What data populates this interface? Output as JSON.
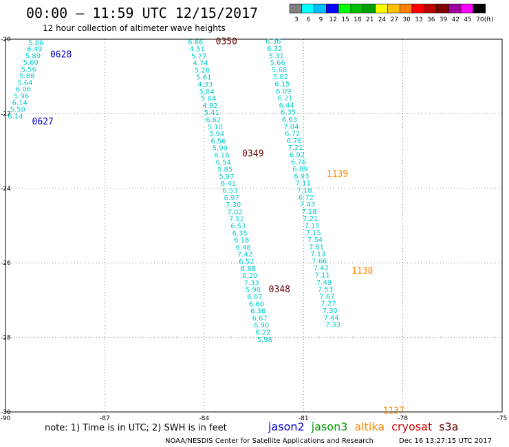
{
  "header": {
    "title": "00:00 – 11:59 UTC 12/15/2017",
    "subtitle": "12 hour collection of altimeter wave heights"
  },
  "scale": {
    "unit": "(ft)",
    "colors": [
      "#808080",
      "#00ffff",
      "#00bfff",
      "#0000ff",
      "#00ff00",
      "#00c000",
      "#00a000",
      "#ffff00",
      "#ffc000",
      "#ff8000",
      "#ff0000",
      "#c00000",
      "#800000",
      "#a000a0",
      "#ff00ff",
      "#000000"
    ],
    "labels": [
      "3",
      "6",
      "9",
      "12",
      "15",
      "18",
      "21",
      "24",
      "27",
      "30",
      "33",
      "36",
      "39",
      "42",
      "45",
      "70"
    ]
  },
  "note": "note:  1) Time is in UTC;  2) SWH is in feet",
  "satellites": [
    {
      "name": "jason2",
      "color": "#0000cc"
    },
    {
      "name": "jason3",
      "color": "#009900"
    },
    {
      "name": "altika",
      "color": "#ff8800"
    },
    {
      "name": "cryosat",
      "color": "#cc0000"
    },
    {
      "name": "s3a",
      "color": "#660000"
    }
  ],
  "footer": {
    "credit": "NOAA/NESDIS Center for Satellite Applications and Research",
    "timestamp": "Dec 16 13:27:15 UTC 2017"
  },
  "chart_data": {
    "type": "scatter",
    "xlim": [
      -90,
      -75
    ],
    "ylim": [
      -30,
      -20
    ],
    "x_ticks": [
      "-90",
      "-87",
      "-84",
      "-81",
      "-78",
      "-75"
    ],
    "y_ticks": [
      "-20",
      "-22",
      "-24",
      "-26",
      "-28",
      "-30"
    ],
    "grid": true,
    "time_labels": [
      {
        "text": "0628",
        "x": -88.65,
        "y": -20.4,
        "color": "#0000cc"
      },
      {
        "text": "0627",
        "x": -89.2,
        "y": -22.2,
        "color": "#0000cc"
      },
      {
        "text": "0350",
        "x": -83.65,
        "y": -20.05,
        "color": "#660000"
      },
      {
        "text": "0349",
        "x": -82.85,
        "y": -23.05,
        "color": "#660000"
      },
      {
        "text": "0348",
        "x": -82.05,
        "y": -26.7,
        "color": "#660000"
      },
      {
        "text": "1139",
        "x": -80.3,
        "y": -23.6,
        "color": "#ff8800"
      },
      {
        "text": "1138",
        "x": -79.55,
        "y": -26.2,
        "color": "#ff8800"
      },
      {
        "text": "1137",
        "x": -78.6,
        "y": -29.95,
        "color": "#ff8800"
      }
    ],
    "series": [
      {
        "color": "#00cccc",
        "points": [
          {
            "x": -89.08,
            "y": -20.08,
            "v": "5.86"
          },
          {
            "x": -89.12,
            "y": -20.25,
            "v": "6.49"
          },
          {
            "x": -89.17,
            "y": -20.43,
            "v": "5.89"
          },
          {
            "x": -89.24,
            "y": -20.61,
            "v": "5.60"
          },
          {
            "x": -89.3,
            "y": -20.79,
            "v": "5.56"
          },
          {
            "x": -89.35,
            "y": -20.97,
            "v": "5.88"
          },
          {
            "x": -89.41,
            "y": -21.15,
            "v": "5.64"
          },
          {
            "x": -89.46,
            "y": -21.33,
            "v": "6.06"
          },
          {
            "x": -89.52,
            "y": -21.51,
            "v": "5.96"
          },
          {
            "x": -89.57,
            "y": -21.69,
            "v": "6.14"
          },
          {
            "x": -89.63,
            "y": -21.87,
            "v": "5.50"
          },
          {
            "x": -89.7,
            "y": -22.06,
            "v": "6.14"
          }
        ]
      },
      {
        "color": "#00cccc",
        "points": [
          {
            "x": -84.26,
            "y": -20.06,
            "v": "6.66"
          },
          {
            "x": -84.21,
            "y": -20.25,
            "v": "4.51"
          },
          {
            "x": -84.16,
            "y": -20.44,
            "v": "5.77"
          },
          {
            "x": -84.11,
            "y": -20.63,
            "v": "4.74"
          },
          {
            "x": -84.06,
            "y": -20.82,
            "v": "5.28"
          },
          {
            "x": -84.01,
            "y": -21.01,
            "v": "5.61"
          },
          {
            "x": -83.97,
            "y": -21.2,
            "v": "4.33"
          },
          {
            "x": -83.92,
            "y": -21.39,
            "v": "5.84"
          },
          {
            "x": -83.87,
            "y": -21.58,
            "v": "5.64"
          },
          {
            "x": -83.82,
            "y": -21.77,
            "v": "4.92"
          },
          {
            "x": -83.77,
            "y": -21.96,
            "v": "5.41"
          },
          {
            "x": -83.72,
            "y": -22.15,
            "v": "6.62"
          },
          {
            "x": -83.67,
            "y": -22.34,
            "v": "5.10"
          },
          {
            "x": -83.62,
            "y": -22.53,
            "v": "5.94"
          },
          {
            "x": -83.57,
            "y": -22.72,
            "v": "6.56"
          },
          {
            "x": -83.52,
            "y": -22.91,
            "v": "5.99"
          },
          {
            "x": -83.47,
            "y": -23.1,
            "v": "6.16"
          },
          {
            "x": -83.42,
            "y": -23.29,
            "v": "6.54"
          },
          {
            "x": -83.37,
            "y": -23.48,
            "v": "5.85"
          },
          {
            "x": -83.32,
            "y": -23.67,
            "v": "5.97"
          },
          {
            "x": -83.27,
            "y": -23.86,
            "v": "6.41"
          },
          {
            "x": -83.22,
            "y": -24.05,
            "v": "6.53"
          },
          {
            "x": -83.17,
            "y": -24.24,
            "v": "6.97"
          },
          {
            "x": -83.12,
            "y": -24.43,
            "v": "7.30"
          },
          {
            "x": -83.07,
            "y": -24.62,
            "v": "7.02"
          },
          {
            "x": -83.02,
            "y": -24.81,
            "v": "7.52"
          },
          {
            "x": -82.97,
            "y": -25.0,
            "v": "6.53"
          },
          {
            "x": -82.92,
            "y": -25.19,
            "v": "6.35"
          },
          {
            "x": -82.87,
            "y": -25.38,
            "v": "6.18"
          },
          {
            "x": -82.82,
            "y": -25.57,
            "v": "6.48"
          },
          {
            "x": -82.77,
            "y": -25.76,
            "v": "7.42"
          },
          {
            "x": -82.72,
            "y": -25.95,
            "v": "6.52"
          },
          {
            "x": -82.67,
            "y": -26.14,
            "v": "6.88"
          },
          {
            "x": -82.62,
            "y": -26.33,
            "v": "6.20"
          },
          {
            "x": -82.57,
            "y": -26.52,
            "v": "7.33"
          },
          {
            "x": -82.52,
            "y": -26.71,
            "v": "5.98"
          },
          {
            "x": -82.47,
            "y": -26.9,
            "v": "6.07"
          },
          {
            "x": -82.42,
            "y": -27.09,
            "v": "6.60"
          },
          {
            "x": -82.37,
            "y": -27.28,
            "v": "6.38"
          },
          {
            "x": -82.32,
            "y": -27.47,
            "v": "6.67"
          },
          {
            "x": -82.27,
            "y": -27.66,
            "v": "6.90"
          },
          {
            "x": -82.22,
            "y": -27.85,
            "v": "6.22"
          },
          {
            "x": -82.17,
            "y": -28.04,
            "v": "5.98"
          }
        ]
      },
      {
        "color": "#00cccc",
        "points": [
          {
            "x": -81.91,
            "y": -20.05,
            "v": "6.36"
          },
          {
            "x": -81.87,
            "y": -20.24,
            "v": "6.32"
          },
          {
            "x": -81.82,
            "y": -20.43,
            "v": "5.31"
          },
          {
            "x": -81.78,
            "y": -20.62,
            "v": "5.66"
          },
          {
            "x": -81.73,
            "y": -20.81,
            "v": "5.68"
          },
          {
            "x": -81.69,
            "y": -21.0,
            "v": "5.82"
          },
          {
            "x": -81.64,
            "y": -21.19,
            "v": "6.15"
          },
          {
            "x": -81.6,
            "y": -21.38,
            "v": "6.09"
          },
          {
            "x": -81.55,
            "y": -21.57,
            "v": "6.21"
          },
          {
            "x": -81.51,
            "y": -21.76,
            "v": "6.44"
          },
          {
            "x": -81.46,
            "y": -21.95,
            "v": "6.35"
          },
          {
            "x": -81.42,
            "y": -22.14,
            "v": "6.63"
          },
          {
            "x": -81.37,
            "y": -22.33,
            "v": "7.04"
          },
          {
            "x": -81.33,
            "y": -22.52,
            "v": "6.72"
          },
          {
            "x": -81.28,
            "y": -22.71,
            "v": "6.76"
          },
          {
            "x": -81.24,
            "y": -22.9,
            "v": "7.21"
          },
          {
            "x": -81.19,
            "y": -23.09,
            "v": "6.92"
          },
          {
            "x": -81.15,
            "y": -23.28,
            "v": "6.76"
          },
          {
            "x": -81.1,
            "y": -23.47,
            "v": "6.89"
          },
          {
            "x": -81.06,
            "y": -23.66,
            "v": "6.93"
          },
          {
            "x": -81.01,
            "y": -23.85,
            "v": "7.11"
          },
          {
            "x": -80.97,
            "y": -24.04,
            "v": "7.18"
          },
          {
            "x": -80.92,
            "y": -24.23,
            "v": "6.72"
          },
          {
            "x": -80.88,
            "y": -24.42,
            "v": "7.43"
          },
          {
            "x": -80.83,
            "y": -24.61,
            "v": "7.18"
          },
          {
            "x": -80.79,
            "y": -24.8,
            "v": "7.21"
          },
          {
            "x": -80.74,
            "y": -24.99,
            "v": "7.15"
          },
          {
            "x": -80.7,
            "y": -25.18,
            "v": "7.15"
          },
          {
            "x": -80.65,
            "y": -25.37,
            "v": "7.54"
          },
          {
            "x": -80.61,
            "y": -25.56,
            "v": "7.51"
          },
          {
            "x": -80.56,
            "y": -25.75,
            "v": "7.13"
          },
          {
            "x": -80.52,
            "y": -25.94,
            "v": "7.66"
          },
          {
            "x": -80.47,
            "y": -26.13,
            "v": "7.42"
          },
          {
            "x": -80.43,
            "y": -26.32,
            "v": "7.11"
          },
          {
            "x": -80.38,
            "y": -26.51,
            "v": "7.49"
          },
          {
            "x": -80.34,
            "y": -26.7,
            "v": "7.53"
          },
          {
            "x": -80.29,
            "y": -26.89,
            "v": "7.67"
          },
          {
            "x": -80.25,
            "y": -27.08,
            "v": "7.27"
          },
          {
            "x": -80.2,
            "y": -27.27,
            "v": "7.30"
          },
          {
            "x": -80.16,
            "y": -27.46,
            "v": "7.44"
          },
          {
            "x": -80.11,
            "y": -27.65,
            "v": "7.33"
          }
        ]
      }
    ]
  }
}
